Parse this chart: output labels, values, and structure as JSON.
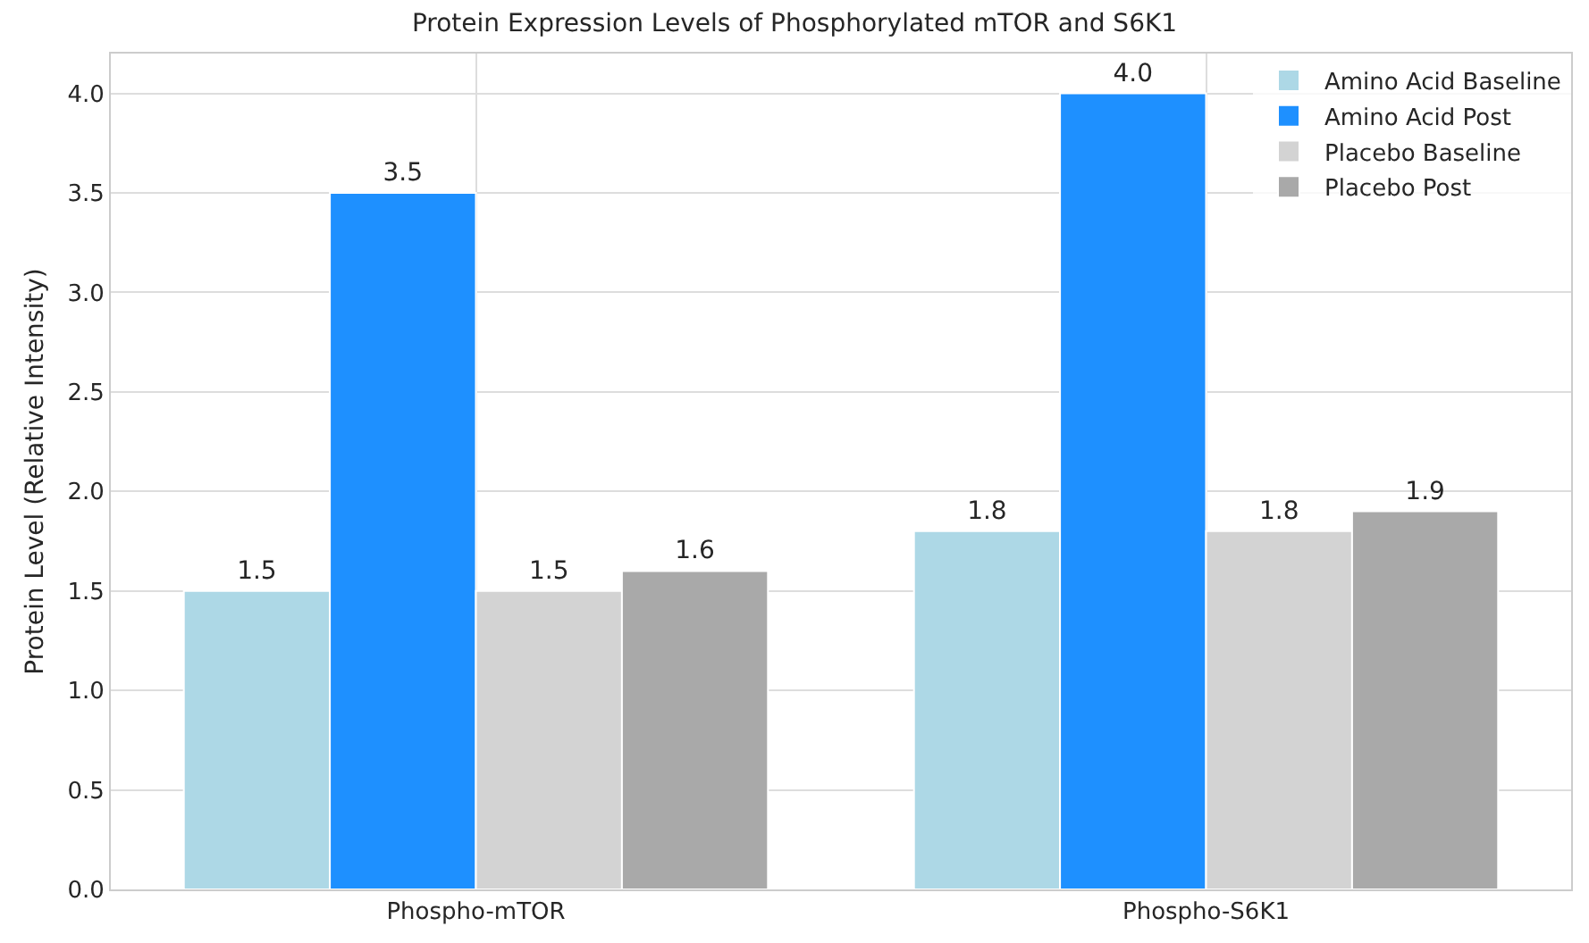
{
  "chart_data": {
    "type": "bar",
    "title": "Protein Expression Levels of Phosphorylated mTOR and S6K1",
    "ylabel": "Protein Level (Relative Intensity)",
    "categories": [
      "Phospho-mTOR",
      "Phospho-S6K1"
    ],
    "series": [
      {
        "name": "Amino Acid Baseline",
        "color": "#add8e6",
        "values": [
          1.5,
          1.8
        ],
        "value_labels": [
          "1.5",
          "1.8"
        ]
      },
      {
        "name": "Amino Acid Post",
        "color": "#1e90ff",
        "values": [
          3.5,
          4.0
        ],
        "value_labels": [
          "3.5",
          "4.0"
        ]
      },
      {
        "name": "Placebo Baseline",
        "color": "#d3d3d3",
        "values": [
          1.5,
          1.8
        ],
        "value_labels": [
          "1.5",
          "1.8"
        ]
      },
      {
        "name": "Placebo Post",
        "color": "#a9a9a9",
        "values": [
          1.6,
          1.9
        ],
        "value_labels": [
          "1.6",
          "1.9"
        ]
      }
    ],
    "ylim": [
      0,
      4.2
    ],
    "yticks": [
      {
        "value": 0,
        "label": "0.0"
      },
      0.5,
      {
        "value": 1,
        "label": "1.0"
      },
      1.5,
      {
        "value": 2,
        "label": "2.0"
      },
      2.5,
      {
        "value": 3,
        "label": "3.0"
      },
      3.5,
      {
        "value": 4,
        "label": "4.0"
      }
    ],
    "grid": true,
    "legend": "top right"
  }
}
